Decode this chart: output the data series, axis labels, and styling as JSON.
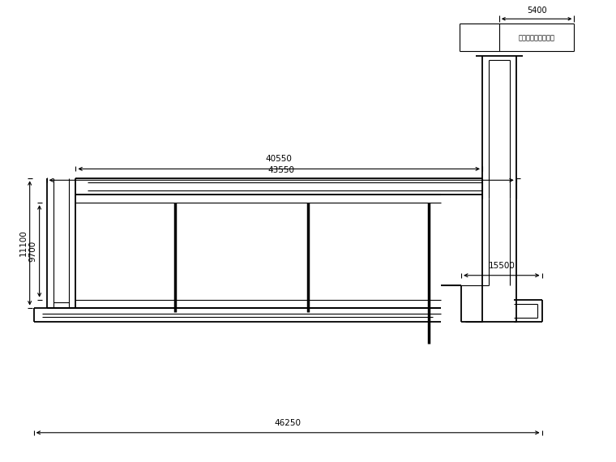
{
  "bg_color": "#ffffff",
  "line_color": "#000000",
  "annotation_text": "屋面压测已完成部分",
  "dim_5400": "5400",
  "dim_40550": "40550",
  "dim_43550": "43550",
  "dim_11100": "11100",
  "dim_9700": "9700",
  "dim_15500": "15500",
  "dim_46250": "46250",
  "figsize": [
    7.6,
    5.7
  ],
  "dpi": 100
}
